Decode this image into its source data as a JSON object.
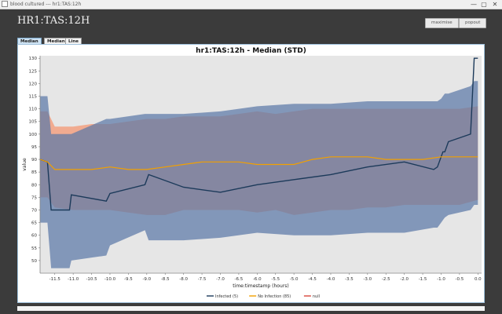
{
  "window": {
    "title": "blood cultured --- hr1:TAS:12h",
    "controls": {
      "minimize": "—",
      "maximize": "▢",
      "close": "✕"
    }
  },
  "page": {
    "heading": "HR1:TAS:12H",
    "buttons": {
      "maximise": "maximise",
      "popout": "popout"
    }
  },
  "tabs": [
    "Median - S",
    "Median",
    "Line"
  ],
  "chart_data": {
    "type": "line",
    "title": "hr1:TAS:12h - Median (STD)",
    "xlabel": "time:timestamp (hours)",
    "ylabel": "value",
    "xlim": [
      -11.9,
      0.1
    ],
    "ylim": [
      45,
      131
    ],
    "x_ticks": [
      -11.5,
      -11.0,
      -10.5,
      -10.0,
      -9.5,
      -9.0,
      -8.5,
      -8.0,
      -7.5,
      -7.0,
      -6.5,
      -6.0,
      -5.5,
      -5.0,
      -4.5,
      -4.0,
      -3.5,
      -3.0,
      -2.5,
      -2.0,
      -1.5,
      -1.0,
      -0.5,
      0.0
    ],
    "x_tick_labels": [
      "-11.5",
      "-11.0",
      "-10.5",
      "-10.0",
      "-9.5",
      "-9.0",
      "-8.5",
      "-8.0",
      "-7.5",
      "-7.0",
      "-6.5",
      "-6.0",
      "-5.5",
      "-5.0",
      "-4.5",
      "-4.0",
      "-3.5",
      "-3.0",
      "-2.5",
      "-2.0",
      "-1.5",
      "-1.0",
      "-0.5",
      "0.0"
    ],
    "y_ticks": [
      50,
      55,
      60,
      65,
      70,
      75,
      80,
      85,
      90,
      95,
      100,
      105,
      110,
      115,
      120,
      125,
      130
    ],
    "grid": false,
    "legend_position": "bottom",
    "legend": [
      {
        "label": "Infected (5)",
        "color": "#1c3a5a"
      },
      {
        "label": "No Infection (85)",
        "color": "#f2a000"
      },
      {
        "label": "null",
        "color": "#d9483b"
      }
    ],
    "series": [
      {
        "name": "Infected (5)",
        "color": "#1c3a5a",
        "x": [
          -11.9,
          -11.7,
          -11.6,
          -11.1,
          -11.05,
          -10.1,
          -10.0,
          -9.05,
          -8.95,
          -8.0,
          -7.0,
          -6.0,
          -5.0,
          -4.0,
          -3.0,
          -2.0,
          -1.2,
          -1.1,
          -1.0,
          -0.95,
          -0.9,
          -0.8,
          -0.2,
          -0.1,
          0.0
        ],
        "y": [
          90,
          89,
          70,
          70,
          76,
          73.5,
          76.5,
          80,
          84,
          79,
          77,
          80,
          82,
          84,
          87,
          89,
          86,
          87,
          91,
          93,
          93,
          97,
          100,
          130,
          130
        ],
        "band_upper": [
          115,
          115,
          100,
          100,
          100,
          106,
          106,
          108,
          108,
          108,
          109,
          111,
          112,
          112,
          113,
          113,
          113,
          113,
          114,
          115,
          116,
          116,
          119,
          121,
          121
        ],
        "band_lower": [
          65,
          65,
          47,
          47,
          50,
          52,
          56,
          62,
          58,
          58,
          59,
          61,
          60,
          60,
          61,
          61,
          63,
          63,
          65,
          66,
          67,
          68,
          70,
          72,
          72
        ]
      },
      {
        "name": "No Infection (85)",
        "color": "#f2a000",
        "x": [
          -11.9,
          -11.7,
          -11.5,
          -11.0,
          -10.5,
          -10.0,
          -9.5,
          -9.0,
          -8.5,
          -8.0,
          -7.5,
          -7.0,
          -6.5,
          -6.0,
          -5.5,
          -5.0,
          -4.5,
          -4.0,
          -3.5,
          -3.0,
          -2.5,
          -2.0,
          -1.5,
          -1.0,
          -0.5,
          0.0
        ],
        "y": [
          90,
          89,
          86,
          86,
          86,
          87,
          86,
          86,
          87,
          88,
          89,
          89,
          89,
          88,
          88,
          88,
          90,
          91,
          91,
          91,
          90,
          90,
          90,
          91,
          91,
          91
        ],
        "band_upper": [
          109,
          109,
          103,
          103,
          104,
          104,
          105,
          106,
          106,
          107,
          107,
          107,
          108,
          109,
          108,
          109,
          110,
          110,
          110,
          110,
          110,
          110,
          110,
          110,
          110,
          111
        ],
        "band_lower": [
          75,
          75,
          71,
          70,
          70,
          70,
          69,
          68,
          68,
          70,
          70,
          70,
          70,
          69,
          70,
          68,
          69,
          70,
          70,
          71,
          71,
          72,
          72,
          72,
          72,
          74
        ]
      }
    ]
  }
}
